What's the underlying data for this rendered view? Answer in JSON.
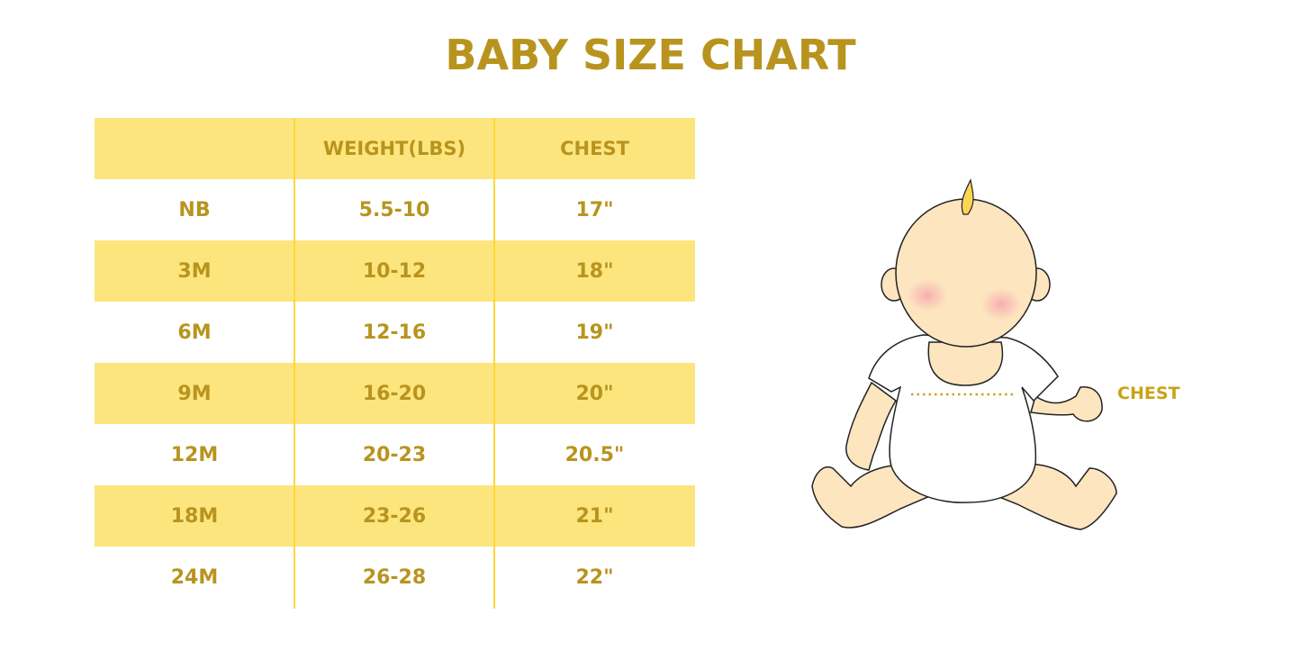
{
  "title": "BABY SIZE CHART",
  "table": {
    "headers": [
      "",
      "WEIGHT(LBS)",
      "CHEST"
    ],
    "rows": [
      [
        "NB",
        "5.5-10",
        "17\""
      ],
      [
        "3M",
        "10-12",
        "18\""
      ],
      [
        "6M",
        "12-16",
        "19\""
      ],
      [
        "9M",
        "16-20",
        "20\""
      ],
      [
        "12M",
        "20-23",
        "20.5\""
      ],
      [
        "18M",
        "23-26",
        "21\""
      ],
      [
        "24M",
        "26-28",
        "22\""
      ]
    ]
  },
  "illustration": {
    "chest_label": "CHEST"
  },
  "colors": {
    "text": "#b8941f",
    "band": "#fce57d",
    "divider": "#fcd83a",
    "skin": "#fde5bf"
  }
}
